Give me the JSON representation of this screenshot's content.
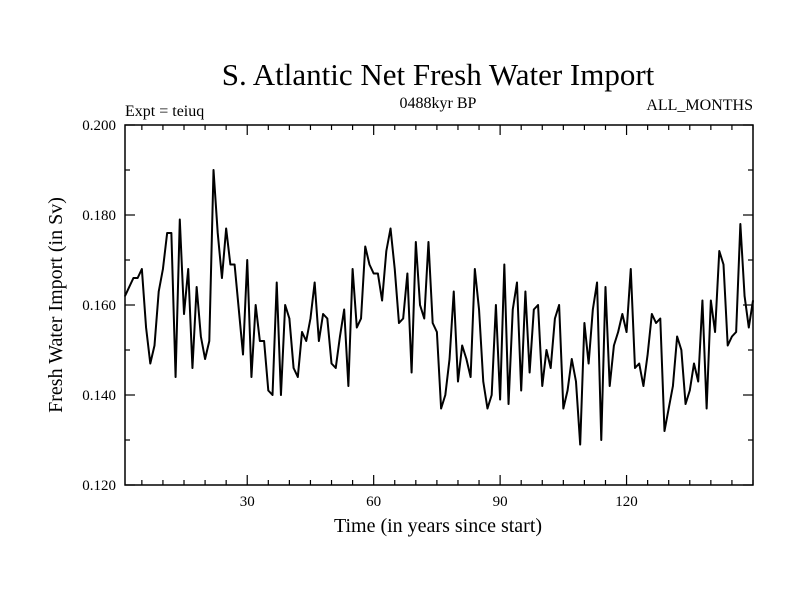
{
  "chart_data": {
    "type": "line",
    "title": "S. Atlantic Net Fresh Water Import",
    "subtitle_left": "Expt = teiuq",
    "subtitle_center": "0488kyr BP",
    "subtitle_right": "ALL_MONTHS",
    "xlabel": "Time (in years since start)",
    "ylabel": "Fresh Water Import (in Sv)",
    "xlim": [
      1,
      150
    ],
    "ylim": [
      0.12,
      0.2
    ],
    "x_ticks": [
      30,
      60,
      90,
      120
    ],
    "y_ticks": [
      0.12,
      0.14,
      0.16,
      0.18,
      0.2
    ],
    "x_tick_labels": [
      "30",
      "60",
      "90",
      "120"
    ],
    "y_tick_labels": [
      "0.120",
      "0.140",
      "0.160",
      "0.180",
      "0.200"
    ],
    "series": [
      {
        "name": "S. Atlantic Net Fresh Water Import",
        "x_start": 1,
        "x_step": 1,
        "values": [
          0.162,
          0.164,
          0.166,
          0.166,
          0.168,
          0.155,
          0.147,
          0.151,
          0.163,
          0.168,
          0.176,
          0.176,
          0.144,
          0.179,
          0.158,
          0.168,
          0.146,
          0.164,
          0.153,
          0.148,
          0.152,
          0.19,
          0.176,
          0.166,
          0.177,
          0.169,
          0.169,
          0.159,
          0.149,
          0.17,
          0.144,
          0.16,
          0.152,
          0.152,
          0.141,
          0.14,
          0.165,
          0.14,
          0.16,
          0.157,
          0.146,
          0.144,
          0.154,
          0.152,
          0.157,
          0.165,
          0.152,
          0.158,
          0.157,
          0.147,
          0.146,
          0.153,
          0.159,
          0.142,
          0.168,
          0.155,
          0.157,
          0.173,
          0.169,
          0.167,
          0.167,
          0.161,
          0.172,
          0.177,
          0.168,
          0.156,
          0.157,
          0.167,
          0.145,
          0.174,
          0.16,
          0.157,
          0.174,
          0.156,
          0.154,
          0.137,
          0.14,
          0.148,
          0.163,
          0.143,
          0.151,
          0.148,
          0.144,
          0.168,
          0.159,
          0.143,
          0.137,
          0.14,
          0.16,
          0.139,
          0.169,
          0.138,
          0.159,
          0.165,
          0.141,
          0.163,
          0.145,
          0.159,
          0.16,
          0.142,
          0.15,
          0.146,
          0.157,
          0.16,
          0.137,
          0.141,
          0.148,
          0.143,
          0.129,
          0.156,
          0.147,
          0.159,
          0.165,
          0.13,
          0.164,
          0.142,
          0.151,
          0.154,
          0.158,
          0.154,
          0.168,
          0.146,
          0.147,
          0.142,
          0.149,
          0.158,
          0.156,
          0.157,
          0.132,
          0.137,
          0.142,
          0.153,
          0.15,
          0.138,
          0.141,
          0.147,
          0.143,
          0.161,
          0.137,
          0.161,
          0.154,
          0.172,
          0.169,
          0.151,
          0.153,
          0.154,
          0.178,
          0.162,
          0.155,
          0.161
        ]
      }
    ]
  }
}
